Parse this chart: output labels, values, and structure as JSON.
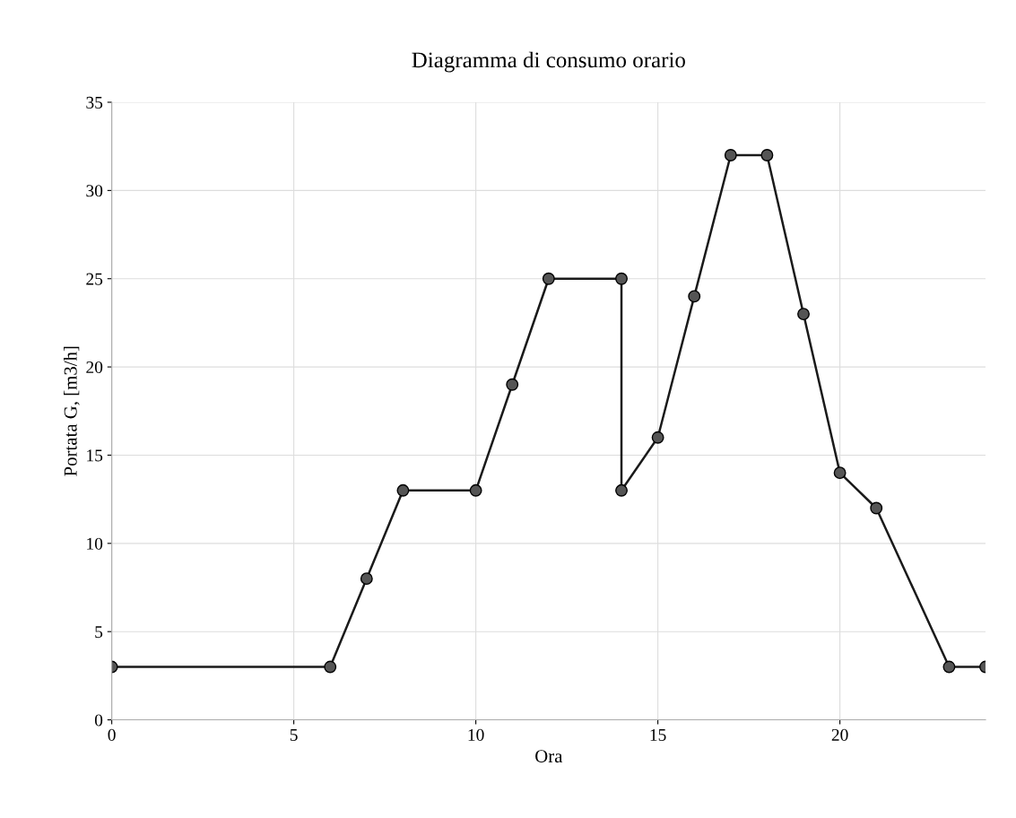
{
  "chart_data": {
    "type": "line",
    "title": "Diagramma di consumo orario",
    "xlabel": "Ora",
    "ylabel": "Portata G, [m3/h]",
    "x": [
      0,
      6,
      7,
      8,
      10,
      11,
      12,
      14,
      14,
      15,
      16,
      17,
      18,
      19,
      20,
      21,
      23,
      24
    ],
    "series": [
      {
        "color": "#1a1a1a",
        "values": [
          3,
          3,
          8,
          13,
          13,
          19,
          25,
          25,
          13,
          16,
          24,
          32,
          32,
          23,
          14,
          12,
          3,
          3
        ]
      }
    ],
    "xlim": [
      0,
      24
    ],
    "xticks": [
      0,
      5,
      10,
      15,
      20
    ],
    "ylim": [
      0,
      35
    ],
    "yticks": [
      0,
      5,
      10,
      15,
      20,
      25,
      30,
      35
    ],
    "grid": true,
    "marker": "circle",
    "line_style": "solid",
    "legend": false
  }
}
